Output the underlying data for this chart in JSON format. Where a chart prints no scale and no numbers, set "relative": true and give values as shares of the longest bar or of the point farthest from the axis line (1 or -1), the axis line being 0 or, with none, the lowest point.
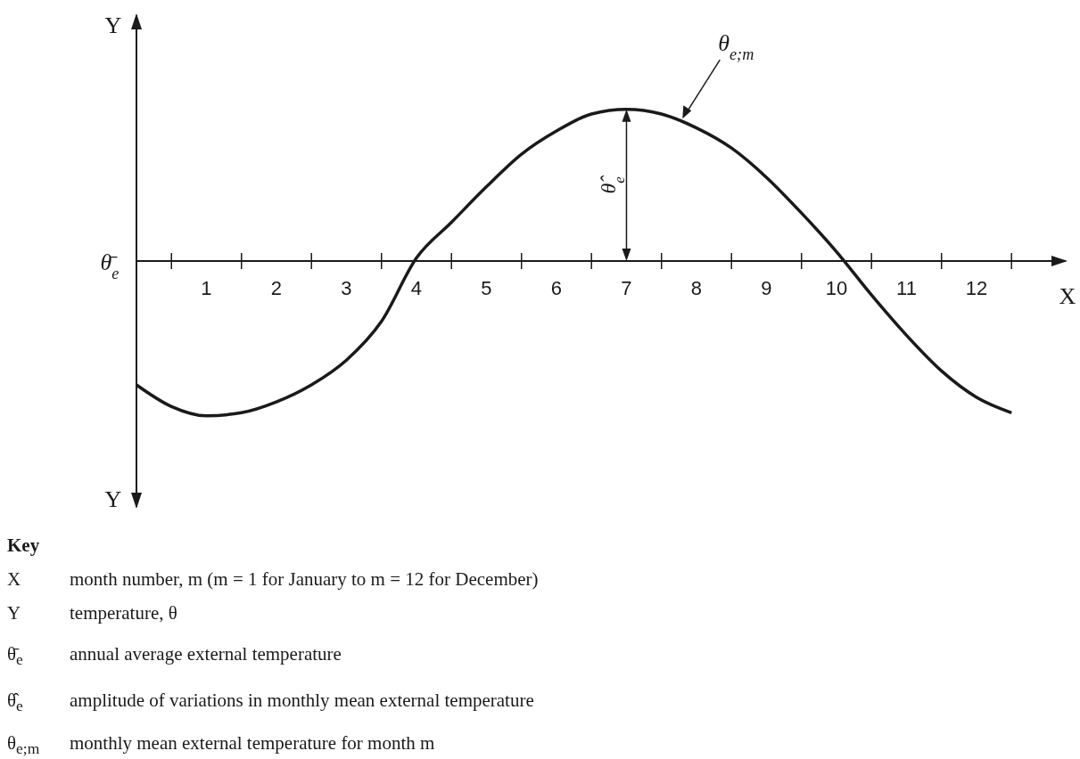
{
  "chart_data": {
    "type": "line",
    "relative": true,
    "xlabel": "X",
    "ylabel": "Y",
    "color": "#1a1a1a",
    "line_style": "solid",
    "x": [
      0,
      0.5,
      1,
      1.5,
      2,
      2.5,
      3,
      3.5,
      4,
      4.5,
      5,
      5.5,
      6,
      6.5,
      7,
      7.5,
      8,
      8.5,
      9,
      9.5,
      10,
      10.5,
      11,
      11.5,
      12,
      12.5
    ],
    "values": [
      -0.8,
      -0.94,
      -1,
      -0.98,
      -0.91,
      -0.8,
      -0.64,
      -0.39,
      0.02,
      0.25,
      0.48,
      0.69,
      0.84,
      0.95,
      0.98,
      0.95,
      0.86,
      0.73,
      0.54,
      0.31,
      0.06,
      -0.22,
      -0.48,
      -0.71,
      -0.88,
      -0.98
    ],
    "xlim": [
      0,
      13.3
    ],
    "xticks": [
      1,
      2,
      3,
      4,
      5,
      6,
      7,
      8,
      9,
      10,
      11,
      12
    ],
    "tick_labels": "x",
    "annotations": [
      {
        "text": "θ$_{e;m}$",
        "x": 7.8,
        "y": 0.92
      },
      "θ̄$_{e}$",
      "θ̂$_{e}$",
      "Key",
      "X",
      "month number, m (m = 1 for January to m = 12 for December)",
      "Y",
      "temperature, θ",
      "θ̄$_{e}$",
      "annual average external temperature",
      "θ̂$_{e}$",
      "amplitude of variations in monthly mean external temperature",
      "θ$_{e;m}$",
      "monthly mean external temperature for month m"
    ]
  }
}
